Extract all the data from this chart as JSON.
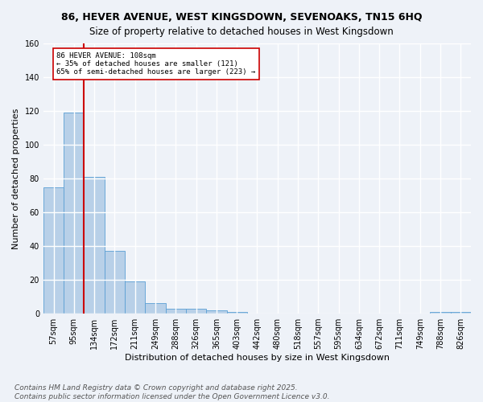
{
  "title": "86, HEVER AVENUE, WEST KINGSDOWN, SEVENOAKS, TN15 6HQ",
  "subtitle": "Size of property relative to detached houses in West Kingsdown",
  "xlabel": "Distribution of detached houses by size in West Kingsdown",
  "ylabel": "Number of detached properties",
  "categories": [
    "57sqm",
    "95sqm",
    "134sqm",
    "172sqm",
    "211sqm",
    "249sqm",
    "288sqm",
    "326sqm",
    "365sqm",
    "403sqm",
    "442sqm",
    "480sqm",
    "518sqm",
    "557sqm",
    "595sqm",
    "634sqm",
    "672sqm",
    "711sqm",
    "749sqm",
    "788sqm",
    "826sqm"
  ],
  "values": [
    75,
    119,
    81,
    37,
    19,
    6,
    3,
    3,
    2,
    1,
    0,
    0,
    0,
    0,
    0,
    0,
    0,
    0,
    0,
    1,
    1
  ],
  "bar_color": "#b8d0e8",
  "bar_edge_color": "#5a9fd4",
  "bar_edge_width": 0.6,
  "red_line_color": "#cc0000",
  "annotation_text": "86 HEVER AVENUE: 108sqm\n← 35% of detached houses are smaller (121)\n65% of semi-detached houses are larger (223) →",
  "annotation_box_color": "#ffffff",
  "annotation_edge_color": "#cc0000",
  "ylim": [
    0,
    160
  ],
  "yticks": [
    0,
    20,
    40,
    60,
    80,
    100,
    120,
    140,
    160
  ],
  "footer": "Contains HM Land Registry data © Crown copyright and database right 2025.\nContains public sector information licensed under the Open Government Licence v3.0.",
  "bg_color": "#eef2f8",
  "grid_color": "#ffffff",
  "title_fontsize": 9,
  "axis_label_fontsize": 8,
  "tick_fontsize": 7,
  "footer_fontsize": 6.5
}
